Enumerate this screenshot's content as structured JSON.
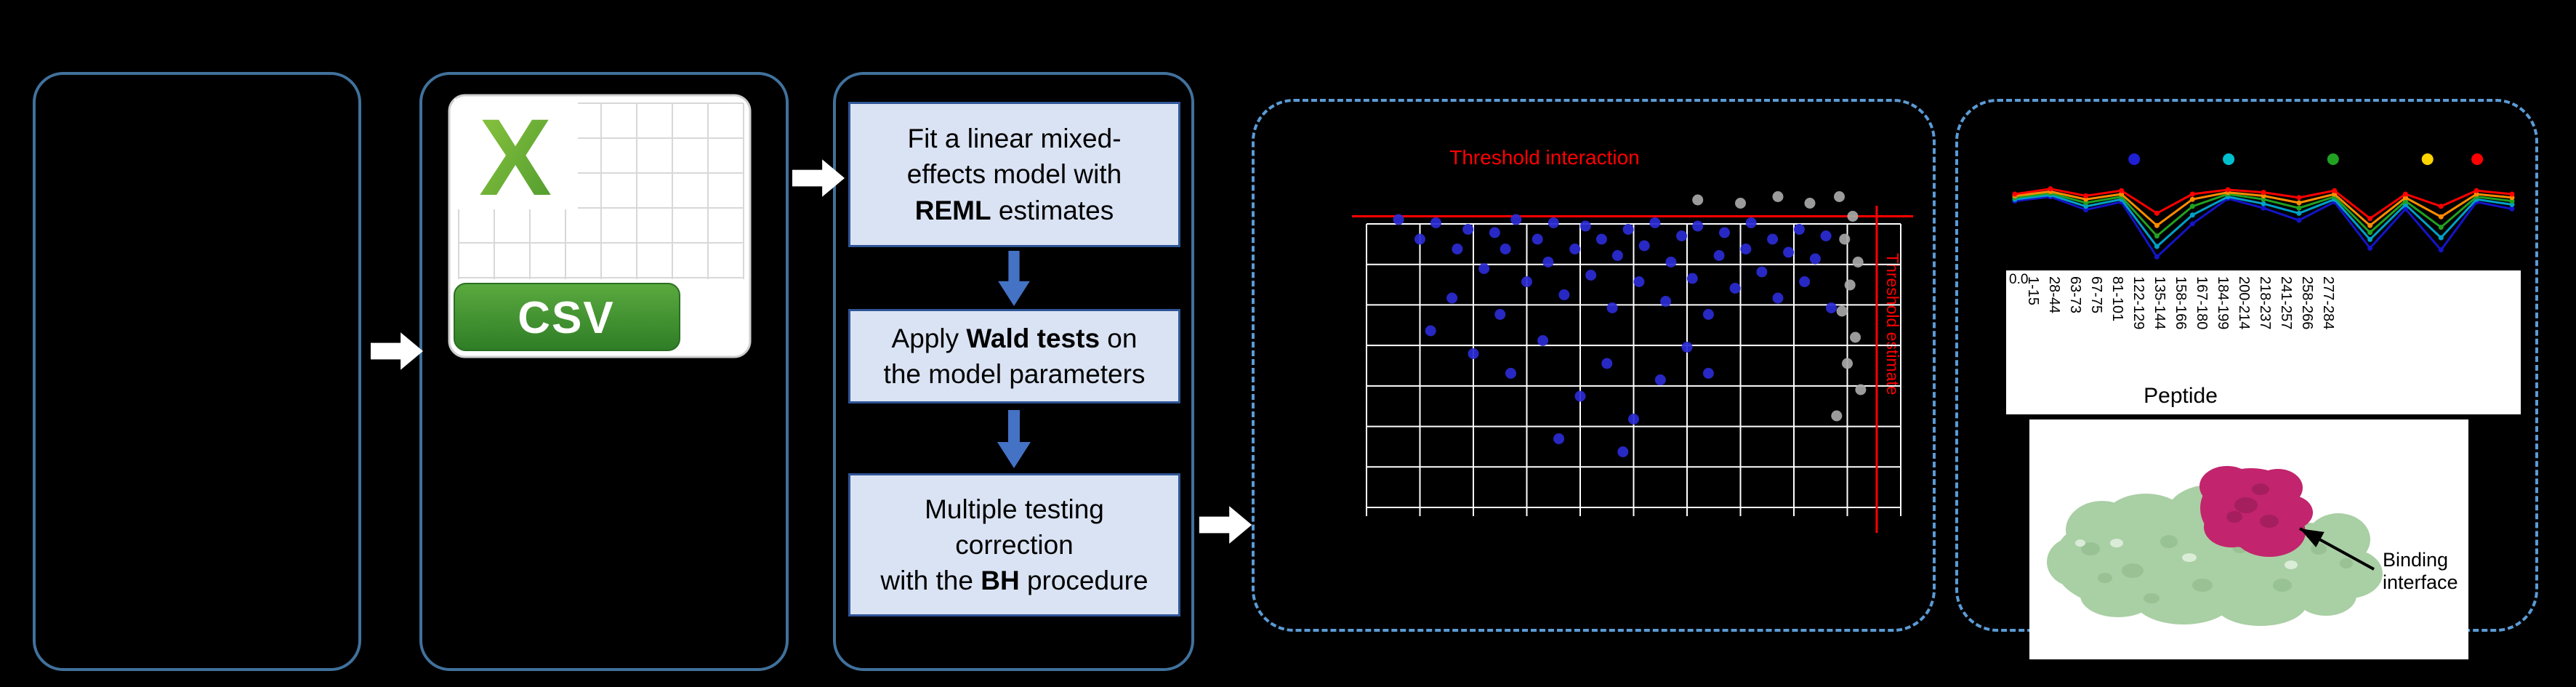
{
  "colors": {
    "background": "#000000",
    "panel_border": "#41719c",
    "dashed_border": "#5b9bd5",
    "step_box_fill": "#dae3f3",
    "step_box_border": "#2f5597",
    "flow_arrow_blue": "#4472c4",
    "flow_arrow_white": "#ffffff",
    "threshold_red": "#ff0000",
    "grid_white": "#ffffff",
    "point_blue": "#2b2bd6",
    "point_gray": "#a8a8a8",
    "csv_x_green": "#76b82a",
    "csv_ribbon_green": "#2f7d26",
    "protein_green": "#a9cfa4",
    "binding_magenta": "#c2246e"
  },
  "csv_icon": {
    "x_glyph": "X",
    "label": "CSV"
  },
  "pipeline": {
    "steps": [
      {
        "line1": "Fit a linear mixed-",
        "line2": "effects model with",
        "bold": "REML",
        "after": " estimates"
      },
      {
        "before": "Apply ",
        "bold": "Wald tests",
        "mid": " on",
        "line2": "the model parameters"
      },
      {
        "line1": "Multiple testing",
        "line2": "correction",
        "before": "with the ",
        "bold": "BH",
        "after": " procedure"
      }
    ]
  },
  "protein": {
    "caption": "Binding interface"
  },
  "chart_data": [
    {
      "type": "scatter",
      "title": "Threshold interaction",
      "right_axis_label": "Threshold estimate",
      "xlim": [
        0,
        1
      ],
      "ylim": [
        0,
        1
      ],
      "grid": {
        "cols": 10,
        "rows": 7,
        "color": "#ffffff"
      },
      "threshold_lines": {
        "horizontal_y": 0.89,
        "vertical_x": 0.955,
        "color": "#ff0000"
      },
      "series": [
        {
          "name": "blue-points",
          "color": "#2b2bd6",
          "points": [
            [
              0.06,
              0.88
            ],
            [
              0.1,
              0.82
            ],
            [
              0.13,
              0.87
            ],
            [
              0.17,
              0.79
            ],
            [
              0.19,
              0.85
            ],
            [
              0.22,
              0.73
            ],
            [
              0.24,
              0.84
            ],
            [
              0.26,
              0.79
            ],
            [
              0.28,
              0.88
            ],
            [
              0.3,
              0.69
            ],
            [
              0.32,
              0.82
            ],
            [
              0.34,
              0.75
            ],
            [
              0.35,
              0.87
            ],
            [
              0.37,
              0.65
            ],
            [
              0.39,
              0.79
            ],
            [
              0.41,
              0.86
            ],
            [
              0.42,
              0.71
            ],
            [
              0.44,
              0.82
            ],
            [
              0.46,
              0.61
            ],
            [
              0.47,
              0.77
            ],
            [
              0.49,
              0.85
            ],
            [
              0.51,
              0.69
            ],
            [
              0.52,
              0.8
            ],
            [
              0.54,
              0.87
            ],
            [
              0.56,
              0.63
            ],
            [
              0.57,
              0.75
            ],
            [
              0.59,
              0.83
            ],
            [
              0.61,
              0.7
            ],
            [
              0.62,
              0.86
            ],
            [
              0.64,
              0.59
            ],
            [
              0.66,
              0.77
            ],
            [
              0.67,
              0.84
            ],
            [
              0.69,
              0.67
            ],
            [
              0.71,
              0.79
            ],
            [
              0.72,
              0.87
            ],
            [
              0.74,
              0.72
            ],
            [
              0.76,
              0.82
            ],
            [
              0.77,
              0.64
            ],
            [
              0.79,
              0.78
            ],
            [
              0.81,
              0.85
            ],
            [
              0.82,
              0.69
            ],
            [
              0.84,
              0.76
            ],
            [
              0.86,
              0.83
            ],
            [
              0.87,
              0.61
            ],
            [
              0.12,
              0.54
            ],
            [
              0.2,
              0.47
            ],
            [
              0.27,
              0.41
            ],
            [
              0.33,
              0.51
            ],
            [
              0.4,
              0.34
            ],
            [
              0.45,
              0.44
            ],
            [
              0.5,
              0.27
            ],
            [
              0.55,
              0.39
            ],
            [
              0.6,
              0.49
            ],
            [
              0.36,
              0.21
            ],
            [
              0.48,
              0.17
            ],
            [
              0.64,
              0.41
            ],
            [
              0.25,
              0.59
            ],
            [
              0.16,
              0.64
            ]
          ]
        },
        {
          "name": "gray-points",
          "color": "#a8a8a8",
          "points": [
            [
              0.885,
              0.95
            ],
            [
              0.91,
              0.89
            ],
            [
              0.895,
              0.82
            ],
            [
              0.92,
              0.75
            ],
            [
              0.905,
              0.68
            ],
            [
              0.89,
              0.6
            ],
            [
              0.915,
              0.52
            ],
            [
              0.9,
              0.44
            ],
            [
              0.925,
              0.36
            ],
            [
              0.88,
              0.28
            ],
            [
              0.7,
              0.93
            ],
            [
              0.77,
              0.95
            ],
            [
              0.62,
              0.94
            ],
            [
              0.83,
              0.93
            ]
          ]
        }
      ]
    },
    {
      "type": "line",
      "xlabel": "Peptide",
      "y_tick_label": "0.0",
      "categories": [
        "1-15",
        "28-44",
        "63-73",
        "67-75",
        "81-101",
        "122-129",
        "135-144",
        "158-166",
        "167-180",
        "184-199",
        "200-214",
        "218-237",
        "241-257",
        "258-266",
        "277-284"
      ],
      "legend_dots": [
        {
          "color": "#1f1fd4",
          "x": 0.24
        },
        {
          "color": "#00c0d0",
          "x": 0.43
        },
        {
          "color": "#21a121",
          "x": 0.64
        },
        {
          "color": "#ffd400",
          "x": 0.83
        },
        {
          "color": "#ff0000",
          "x": 0.93
        }
      ],
      "series": [
        {
          "name": "blue",
          "color": "#1414c8",
          "values": [
            0.72,
            0.77,
            0.62,
            0.71,
            0.08,
            0.46,
            0.75,
            0.64,
            0.5,
            0.71,
            0.18,
            0.63,
            0.16,
            0.71,
            0.63
          ]
        },
        {
          "name": "cyan",
          "color": "#00a0c8",
          "values": [
            0.74,
            0.79,
            0.66,
            0.74,
            0.2,
            0.56,
            0.77,
            0.69,
            0.58,
            0.74,
            0.28,
            0.68,
            0.3,
            0.74,
            0.68
          ]
        },
        {
          "name": "green",
          "color": "#21a121",
          "values": [
            0.76,
            0.81,
            0.7,
            0.77,
            0.32,
            0.66,
            0.8,
            0.74,
            0.64,
            0.77,
            0.36,
            0.72,
            0.42,
            0.77,
            0.72
          ]
        },
        {
          "name": "orange",
          "color": "#ff8c00",
          "values": [
            0.78,
            0.83,
            0.74,
            0.8,
            0.44,
            0.74,
            0.82,
            0.78,
            0.7,
            0.8,
            0.44,
            0.76,
            0.54,
            0.8,
            0.76
          ]
        },
        {
          "name": "red",
          "color": "#ff0000",
          "values": [
            0.8,
            0.86,
            0.78,
            0.84,
            0.58,
            0.8,
            0.85,
            0.82,
            0.76,
            0.84,
            0.52,
            0.8,
            0.66,
            0.84,
            0.8
          ]
        }
      ]
    }
  ]
}
